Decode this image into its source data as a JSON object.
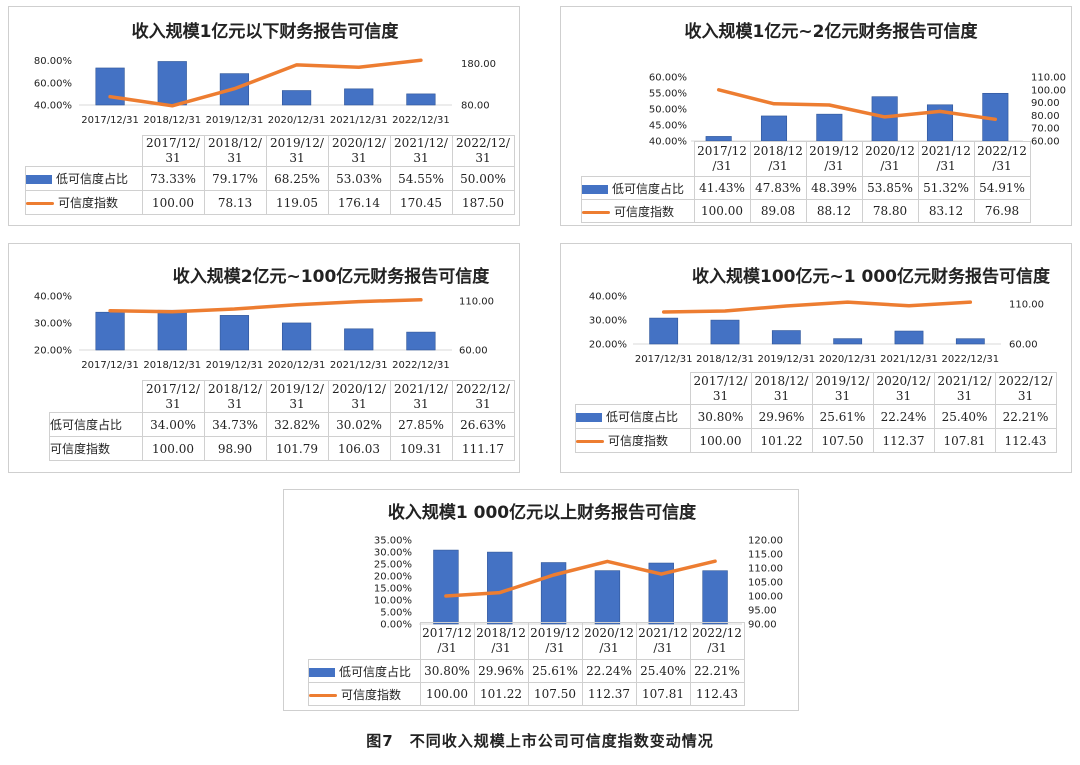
{
  "colors": {
    "bar": "#4472c4",
    "bar_dark": "#2f5597",
    "line": "#ed7d31"
  },
  "caption": "图7　不同收入规模上市公司可信度指数变动情况",
  "chart_data": [
    {
      "type": "bar",
      "title": "收入规模1亿元以下财务报告可信度",
      "categories": [
        "2017/12/31",
        "2018/12/31",
        "2019/12/31",
        "2020/12/31",
        "2021/12/31",
        "2022/12/31"
      ],
      "header_labels": [
        "2017/12/\n31",
        "2018/12/\n31",
        "2019/12/\n31",
        "2020/12/\n31",
        "2021/12/\n31",
        "2022/12/\n31"
      ],
      "series": [
        {
          "name": "低可信度占比",
          "kind": "bar",
          "axis": "left",
          "values": [
            73.33,
            79.17,
            68.25,
            53.03,
            54.55,
            50.0
          ],
          "display": [
            "73.33%",
            "79.17%",
            "68.25%",
            "53.03%",
            "54.55%",
            "50.00%"
          ]
        },
        {
          "name": "可信度指数",
          "kind": "line",
          "axis": "right",
          "values": [
            100.0,
            78.13,
            119.05,
            176.14,
            170.45,
            187.5
          ],
          "display": [
            "100.00",
            "78.13",
            "119.05",
            "176.14",
            "170.45",
            "187.50"
          ]
        }
      ],
      "left_axis": {
        "ticks": [
          40,
          60,
          80
        ],
        "labels": [
          "40.00%",
          "60.00%",
          "80.00%"
        ],
        "min": 40,
        "max": 85
      },
      "right_axis": {
        "ticks": [
          80,
          180
        ],
        "labels": [
          "80.00",
          "180.00"
        ],
        "min": 80,
        "max": 200
      },
      "show_x_tick_labels": true,
      "legend_swatches": true
    },
    {
      "type": "bar",
      "title": "收入规模1亿元~2亿元财务报告可信度",
      "categories": [
        "2017/12/31",
        "2018/12/31",
        "2019/12/31",
        "2020/12/31",
        "2021/12/31",
        "2022/12/31"
      ],
      "header_labels": [
        "2017/12\n/31",
        "2018/12\n/31",
        "2019/12\n/31",
        "2020/12\n/31",
        "2021/12\n/31",
        "2022/12\n/31"
      ],
      "series": [
        {
          "name": "低可信度占比",
          "kind": "bar",
          "axis": "left",
          "values": [
            41.43,
            47.83,
            48.39,
            53.85,
            51.32,
            54.91
          ],
          "display": [
            "41.43%",
            "47.83%",
            "48.39%",
            "53.85%",
            "51.32%",
            "54.91%"
          ]
        },
        {
          "name": "可信度指数",
          "kind": "line",
          "axis": "right",
          "values": [
            100.0,
            89.08,
            88.12,
            78.8,
            83.12,
            76.98
          ],
          "display": [
            "100.00",
            "89.08",
            "88.12",
            "78.80",
            "83.12",
            "76.98"
          ]
        }
      ],
      "left_axis": {
        "ticks": [
          40,
          45,
          50,
          55,
          60
        ],
        "labels": [
          "40.00%",
          "45.00%",
          "50.00%",
          "55.00%",
          "60.00%"
        ],
        "min": 40,
        "max": 60
      },
      "right_axis": {
        "ticks": [
          60,
          70,
          80,
          90,
          100,
          110
        ],
        "labels": [
          "60.00",
          "70.00",
          "80.00",
          "90.00",
          "100.00",
          "110.00"
        ],
        "min": 60,
        "max": 110
      },
      "show_x_tick_labels": false,
      "legend_swatches": true
    },
    {
      "type": "bar",
      "title": "收入规模2亿元~100亿元财务报告可信度",
      "categories": [
        "2017/12/31",
        "2018/12/31",
        "2019/12/31",
        "2020/12/31",
        "2021/12/31",
        "2022/12/31"
      ],
      "header_labels": [
        "2017/12/\n31",
        "2018/12/\n31",
        "2019/12/\n31",
        "2020/12/\n31",
        "2021/12/\n31",
        "2022/12/\n31"
      ],
      "series": [
        {
          "name": "低可信度占比",
          "kind": "bar",
          "axis": "left",
          "values": [
            34.0,
            34.73,
            32.82,
            30.02,
            27.85,
            26.63
          ],
          "display": [
            "34.00%",
            "34.73%",
            "32.82%",
            "30.02%",
            "27.85%",
            "26.63%"
          ]
        },
        {
          "name": "可信度指数",
          "kind": "line",
          "axis": "right",
          "values": [
            100.0,
            98.9,
            101.79,
            106.03,
            109.31,
            111.17
          ],
          "display": [
            "100.00",
            "98.90",
            "101.79",
            "106.03",
            "109.31",
            "111.17"
          ]
        }
      ],
      "left_axis": {
        "ticks": [
          20,
          30,
          40
        ],
        "labels": [
          "20.00%",
          "30.00%",
          "40.00%"
        ],
        "min": 20,
        "max": 40
      },
      "right_axis": {
        "ticks": [
          60,
          110
        ],
        "labels": [
          "60.00",
          "110.00"
        ],
        "min": 60,
        "max": 115
      },
      "show_x_tick_labels": true,
      "legend_swatches": false
    },
    {
      "type": "bar",
      "title": "收入规模100亿元~1 000亿元财务报告可信度",
      "categories": [
        "2017/12/31",
        "2018/12/31",
        "2019/12/31",
        "2020/12/31",
        "2021/12/31",
        "2022/12/31"
      ],
      "header_labels": [
        "2017/12/\n31",
        "2018/12/\n31",
        "2019/12/\n31",
        "2020/12/\n31",
        "2021/12/\n31",
        "2022/12/\n31"
      ],
      "series": [
        {
          "name": "低可信度占比",
          "kind": "bar",
          "axis": "left",
          "values": [
            30.8,
            29.96,
            25.61,
            22.24,
            25.4,
            22.21
          ],
          "display": [
            "30.80%",
            "29.96%",
            "25.61%",
            "22.24%",
            "25.40%",
            "22.21%"
          ]
        },
        {
          "name": "可信度指数",
          "kind": "line",
          "axis": "right",
          "values": [
            100.0,
            101.22,
            107.5,
            112.37,
            107.81,
            112.43
          ],
          "display": [
            "100.00",
            "101.22",
            "107.50",
            "112.37",
            "107.81",
            "112.43"
          ]
        }
      ],
      "left_axis": {
        "ticks": [
          20,
          30,
          40
        ],
        "labels": [
          "20.00%",
          "30.00%",
          "40.00%"
        ],
        "min": 20,
        "max": 40
      },
      "right_axis": {
        "ticks": [
          60,
          110
        ],
        "labels": [
          "60.00",
          "110.00"
        ],
        "min": 60,
        "max": 120
      },
      "show_x_tick_labels": true,
      "legend_swatches": true
    },
    {
      "type": "bar",
      "title": "收入规模1 000亿元以上财务报告可信度",
      "categories": [
        "2017/12/31",
        "2018/12/31",
        "2019/12/31",
        "2020/12/31",
        "2021/12/31",
        "2022/12/31"
      ],
      "header_labels": [
        "2017/12\n/31",
        "2018/12\n/31",
        "2019/12\n/31",
        "2020/12\n/31",
        "2021/12\n/31",
        "2022/12\n/31"
      ],
      "series": [
        {
          "name": "低可信度占比",
          "kind": "bar",
          "axis": "left",
          "values": [
            30.8,
            29.96,
            25.61,
            22.24,
            25.4,
            22.21
          ],
          "display": [
            "30.80%",
            "29.96%",
            "25.61%",
            "22.24%",
            "25.40%",
            "22.21%"
          ]
        },
        {
          "name": "可信度指数",
          "kind": "line",
          "axis": "right",
          "values": [
            100.0,
            101.22,
            107.5,
            112.37,
            107.81,
            112.43
          ],
          "display": [
            "100.00",
            "101.22",
            "107.50",
            "112.37",
            "107.81",
            "112.43"
          ]
        }
      ],
      "left_axis": {
        "ticks": [
          0,
          5,
          10,
          15,
          20,
          25,
          30,
          35
        ],
        "labels": [
          "0.00%",
          "5.00%",
          "10.00%",
          "15.00%",
          "20.00%",
          "25.00%",
          "30.00%",
          "35.00%"
        ],
        "min": 0,
        "max": 35
      },
      "right_axis": {
        "ticks": [
          90,
          95,
          100,
          105,
          110,
          115,
          120
        ],
        "labels": [
          "90.00",
          "95.00",
          "100.00",
          "105.00",
          "110.00",
          "115.00",
          "120.00"
        ],
        "min": 90,
        "max": 120
      },
      "show_x_tick_labels": false,
      "legend_swatches": true
    }
  ]
}
